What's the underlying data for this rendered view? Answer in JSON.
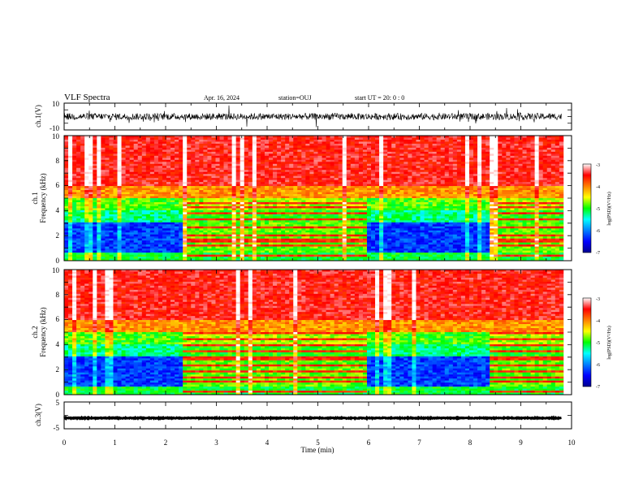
{
  "header": {
    "title": "VLF Spectra",
    "date": "Apr. 16, 2024",
    "station": "station=OUJ",
    "start": "start  UT =   20: 0  : 0"
  },
  "chart_data": [
    {
      "panel": "ch1-waveform",
      "type": "line",
      "ylabel": "ch.1(V)",
      "ylim": [
        -10,
        10
      ],
      "yticks": [
        "10",
        "-10"
      ],
      "xlim": [
        0,
        10
      ],
      "series": [
        {
          "segment": [
            0,
            6
          ],
          "baseline": 0,
          "amplitude": 2.5
        },
        {
          "segment": [
            6,
            9.8
          ],
          "baseline": 0,
          "amplitude": 2.5
        }
      ]
    },
    {
      "panel": "ch1-spectrogram",
      "type": "heatmap",
      "ylabel": "ch.1\nFrequency (kHz)",
      "ylabel_lines": [
        "ch.1",
        "Frequency (kHz)"
      ],
      "ylim": [
        0,
        10
      ],
      "yticks": [
        "0",
        "2",
        "4",
        "6",
        "8",
        "10"
      ],
      "xlim": [
        0,
        10
      ],
      "data_end_min": 9.8,
      "segments": [
        {
          "from": 0,
          "to": 2.35,
          "mode": "quiet"
        },
        {
          "from": 2.35,
          "to": 6.0,
          "mode": "banded"
        },
        {
          "from": 6.0,
          "to": 8.4,
          "mode": "quiet"
        },
        {
          "from": 8.4,
          "to": 9.8,
          "mode": "banded"
        }
      ],
      "colorbar": {
        "label": "log(PSD)(V²/Hz)",
        "range": [
          -7,
          -3
        ],
        "ticks": [
          "-3",
          "-4",
          "-5",
          "-6",
          "-7"
        ]
      }
    },
    {
      "panel": "ch2-spectrogram",
      "type": "heatmap",
      "ylabel": "ch.2\nFrequency (kHz)",
      "ylabel_lines": [
        "ch.2",
        "Frequency (kHz)"
      ],
      "ylim": [
        0,
        10
      ],
      "yticks": [
        "0",
        "2",
        "4",
        "6",
        "8",
        "10"
      ],
      "xlim": [
        0,
        10
      ],
      "data_end_min": 9.8,
      "segments": [
        {
          "from": 0,
          "to": 2.35,
          "mode": "quiet"
        },
        {
          "from": 2.35,
          "to": 6.0,
          "mode": "banded"
        },
        {
          "from": 6.0,
          "to": 8.4,
          "mode": "quiet"
        },
        {
          "from": 8.4,
          "to": 9.8,
          "mode": "banded"
        }
      ],
      "colorbar": {
        "label": "log(PSD)(V²/Hz)",
        "range": [
          -7,
          -3
        ],
        "ticks": [
          "-3",
          "-4",
          "-5",
          "-6",
          "-7"
        ]
      }
    },
    {
      "panel": "ch3-waveform",
      "type": "line",
      "ylabel": "ch.3(V)",
      "ylim": [
        -5,
        5
      ],
      "yticks": [
        "5",
        "0",
        "-5"
      ],
      "xlim": [
        0,
        10
      ],
      "series": [
        {
          "segment": [
            0,
            9.8
          ],
          "baseline": -1.0,
          "amplitude": 0.3
        }
      ]
    }
  ],
  "x_axis": {
    "label": "Time  (min)",
    "ticks": [
      "0",
      "1",
      "2",
      "3",
      "4",
      "5",
      "6",
      "7",
      "8",
      "9",
      "10"
    ],
    "range": [
      0,
      10
    ]
  }
}
